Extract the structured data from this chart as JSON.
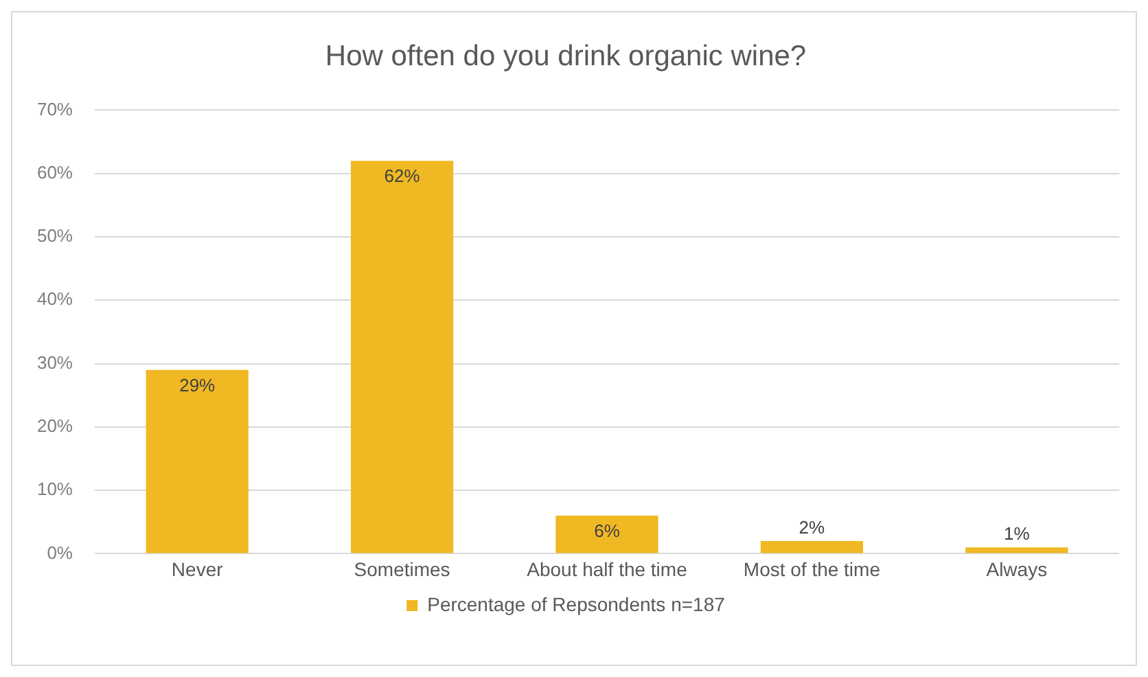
{
  "chart_data": {
    "type": "bar",
    "title": "How often do you drink organic wine?",
    "categories": [
      "Never",
      "Sometimes",
      "About half the time",
      "Most of the time",
      "Always"
    ],
    "series": [
      {
        "name": "Percentage of Repsondents n=187",
        "color": "#f0b823",
        "values": [
          29,
          62,
          6,
          2,
          1
        ],
        "value_labels": [
          "29%",
          "62%",
          "6%",
          "2%",
          "1%"
        ]
      }
    ],
    "ylim": [
      0,
      70
    ],
    "yticks": [
      {
        "value": 0,
        "label": "0%"
      },
      {
        "value": 10,
        "label": "10%"
      },
      {
        "value": 20,
        "label": "20%"
      },
      {
        "value": 30,
        "label": "30%"
      },
      {
        "value": 40,
        "label": "40%"
      },
      {
        "value": 50,
        "label": "50%"
      },
      {
        "value": 60,
        "label": "60%"
      },
      {
        "value": 70,
        "label": "70%"
      }
    ],
    "grid": "y",
    "legend": "bottom"
  }
}
